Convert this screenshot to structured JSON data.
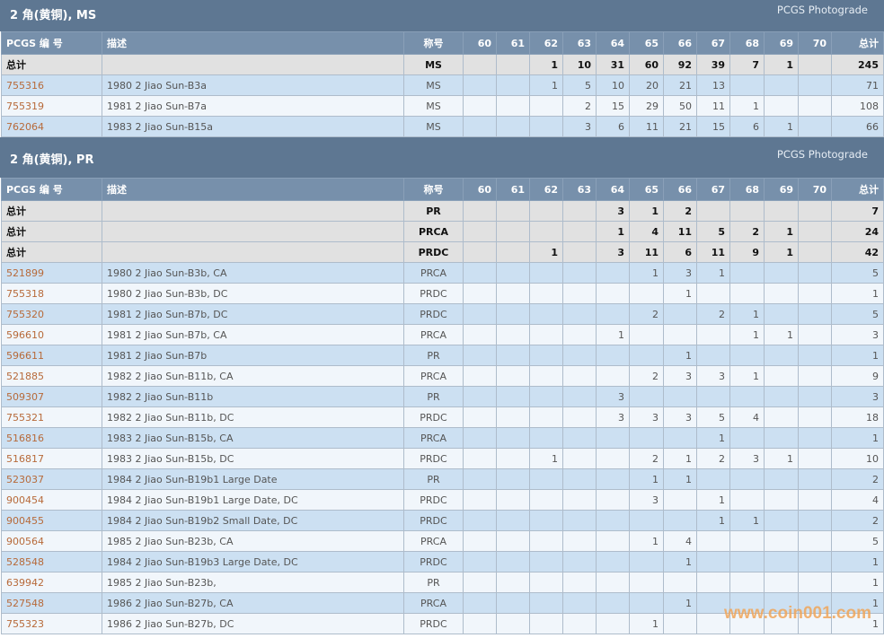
{
  "grades": [
    "60",
    "61",
    "62",
    "63",
    "64",
    "65",
    "66",
    "67",
    "68",
    "69",
    "70"
  ],
  "headers": {
    "id": "PCGS 编 号",
    "desc": "描述",
    "desig": "称号",
    "total": "总计"
  },
  "sections": [
    {
      "title": "2 角(黄铜), MS",
      "photograde": "PCGS Photograde",
      "totals": [
        {
          "label": "总计",
          "desig": "MS",
          "g": [
            "",
            "",
            "1",
            "10",
            "31",
            "60",
            "92",
            "39",
            "7",
            "1",
            ""
          ],
          "total": "245"
        }
      ],
      "rows": [
        {
          "id": "755316",
          "desc": "1980 2 Jiao Sun-B3a",
          "desig": "MS",
          "g": [
            "",
            "",
            "1",
            "5",
            "10",
            "20",
            "21",
            "13",
            "",
            "",
            ""
          ],
          "total": "71"
        },
        {
          "id": "755319",
          "desc": "1981 2 Jiao Sun-B7a",
          "desig": "MS",
          "g": [
            "",
            "",
            "",
            "2",
            "15",
            "29",
            "50",
            "11",
            "1",
            "",
            ""
          ],
          "total": "108"
        },
        {
          "id": "762064",
          "desc": "1983 2 Jiao Sun-B15a",
          "desig": "MS",
          "g": [
            "",
            "",
            "",
            "3",
            "6",
            "11",
            "21",
            "15",
            "6",
            "1",
            ""
          ],
          "total": "66"
        }
      ]
    },
    {
      "title": "2 角(黄铜), PR",
      "photograde": "PCGS Photograde",
      "totals": [
        {
          "label": "总计",
          "desig": "PR",
          "g": [
            "",
            "",
            "",
            "",
            "3",
            "1",
            "2",
            "",
            "",
            "",
            ""
          ],
          "total": "7"
        },
        {
          "label": "总计",
          "desig": "PRCA",
          "g": [
            "",
            "",
            "",
            "",
            "1",
            "4",
            "11",
            "5",
            "2",
            "1",
            ""
          ],
          "total": "24"
        },
        {
          "label": "总计",
          "desig": "PRDC",
          "g": [
            "",
            "",
            "1",
            "",
            "3",
            "11",
            "6",
            "11",
            "9",
            "1",
            ""
          ],
          "total": "42"
        }
      ],
      "rows": [
        {
          "id": "521899",
          "desc": "1980 2 Jiao Sun-B3b, CA",
          "desig": "PRCA",
          "g": [
            "",
            "",
            "",
            "",
            "",
            "1",
            "3",
            "1",
            "",
            "",
            ""
          ],
          "total": "5"
        },
        {
          "id": "755318",
          "desc": "1980 2 Jiao Sun-B3b, DC",
          "desig": "PRDC",
          "g": [
            "",
            "",
            "",
            "",
            "",
            "",
            "1",
            "",
            "",
            "",
            ""
          ],
          "total": "1"
        },
        {
          "id": "755320",
          "desc": "1981 2 Jiao Sun-B7b, DC",
          "desig": "PRDC",
          "g": [
            "",
            "",
            "",
            "",
            "",
            "2",
            "",
            "2",
            "1",
            "",
            ""
          ],
          "total": "5"
        },
        {
          "id": "596610",
          "desc": "1981 2 Jiao Sun-B7b, CA",
          "desig": "PRCA",
          "g": [
            "",
            "",
            "",
            "",
            "1",
            "",
            "",
            "",
            "1",
            "1",
            ""
          ],
          "total": "3"
        },
        {
          "id": "596611",
          "desc": "1981 2 Jiao Sun-B7b",
          "desig": "PR",
          "g": [
            "",
            "",
            "",
            "",
            "",
            "",
            "1",
            "",
            "",
            "",
            ""
          ],
          "total": "1"
        },
        {
          "id": "521885",
          "desc": "1982 2 Jiao Sun-B11b, CA",
          "desig": "PRCA",
          "g": [
            "",
            "",
            "",
            "",
            "",
            "2",
            "3",
            "3",
            "1",
            "",
            ""
          ],
          "total": "9"
        },
        {
          "id": "509307",
          "desc": "1982 2 Jiao Sun-B11b",
          "desig": "PR",
          "g": [
            "",
            "",
            "",
            "",
            "3",
            "",
            "",
            "",
            "",
            "",
            ""
          ],
          "total": "3"
        },
        {
          "id": "755321",
          "desc": "1982 2 Jiao Sun-B11b, DC",
          "desig": "PRDC",
          "g": [
            "",
            "",
            "",
            "",
            "3",
            "3",
            "3",
            "5",
            "4",
            "",
            ""
          ],
          "total": "18"
        },
        {
          "id": "516816",
          "desc": "1983 2 Jiao Sun-B15b, CA",
          "desig": "PRCA",
          "g": [
            "",
            "",
            "",
            "",
            "",
            "",
            "",
            "1",
            "",
            "",
            ""
          ],
          "total": "1"
        },
        {
          "id": "516817",
          "desc": "1983 2 Jiao Sun-B15b, DC",
          "desig": "PRDC",
          "g": [
            "",
            "",
            "1",
            "",
            "",
            "2",
            "1",
            "2",
            "3",
            "1",
            ""
          ],
          "total": "10"
        },
        {
          "id": "523037",
          "desc": "1984 2 Jiao Sun-B19b1 Large Date",
          "desig": "PR",
          "g": [
            "",
            "",
            "",
            "",
            "",
            "1",
            "1",
            "",
            "",
            "",
            ""
          ],
          "total": "2"
        },
        {
          "id": "900454",
          "desc": "1984 2 Jiao Sun-B19b1 Large Date, DC",
          "desig": "PRDC",
          "g": [
            "",
            "",
            "",
            "",
            "",
            "3",
            "",
            "1",
            "",
            "",
            ""
          ],
          "total": "4"
        },
        {
          "id": "900455",
          "desc": "1984 2 Jiao Sun-B19b2 Small Date, DC",
          "desig": "PRDC",
          "g": [
            "",
            "",
            "",
            "",
            "",
            "",
            "",
            "1",
            "1",
            "",
            ""
          ],
          "total": "2"
        },
        {
          "id": "900564",
          "desc": "1985 2 Jiao Sun-B23b, CA",
          "desig": "PRCA",
          "g": [
            "",
            "",
            "",
            "",
            "",
            "1",
            "4",
            "",
            "",
            "",
            ""
          ],
          "total": "5"
        },
        {
          "id": "528548",
          "desc": "1984 2 Jiao Sun-B19b3 Large Date, DC",
          "desig": "PRDC",
          "g": [
            "",
            "",
            "",
            "",
            "",
            "",
            "1",
            "",
            "",
            "",
            ""
          ],
          "total": "1"
        },
        {
          "id": "639942",
          "desc": "1985 2 Jiao Sun-B23b,",
          "desig": "PR",
          "g": [
            "",
            "",
            "",
            "",
            "",
            "",
            "",
            "",
            "",
            "",
            ""
          ],
          "total": "1"
        },
        {
          "id": "527548",
          "desc": "1986 2 Jiao Sun-B27b, CA",
          "desig": "PRCA",
          "g": [
            "",
            "",
            "",
            "",
            "",
            "",
            "1",
            "",
            "",
            "",
            ""
          ],
          "total": "1"
        },
        {
          "id": "755323",
          "desc": "1986 2 Jiao Sun-B27b, DC",
          "desig": "PRDC",
          "g": [
            "",
            "",
            "",
            "",
            "",
            "1",
            "",
            "",
            "",
            "",
            ""
          ],
          "total": "1"
        }
      ]
    }
  ],
  "watermark": "www.coin001.com"
}
